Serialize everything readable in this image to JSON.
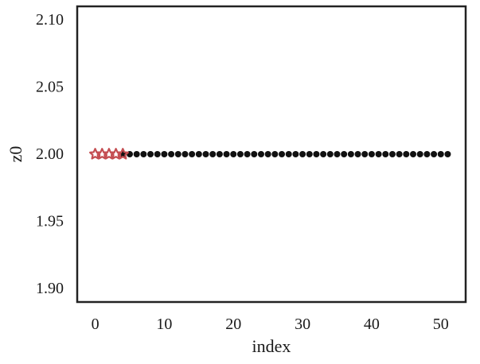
{
  "chart_data": {
    "type": "scatter",
    "xlabel": "index",
    "ylabel": "z0",
    "xlim": [
      -2.6,
      53.6
    ],
    "ylim": [
      1.89,
      2.11
    ],
    "x_ticks": [
      0,
      10,
      20,
      30,
      40,
      50
    ],
    "x_tick_labels": [
      "0",
      "10",
      "20",
      "30",
      "40",
      "50"
    ],
    "y_ticks": [
      1.9,
      1.95,
      2.0,
      2.05,
      2.1
    ],
    "y_tick_labels": [
      "1.90",
      "1.95",
      "2.00",
      "2.05",
      "2.10"
    ],
    "grid": false,
    "series": [
      {
        "marker": "circle",
        "color": "#111111",
        "x": [
          4,
          5,
          6,
          7,
          8,
          9,
          10,
          11,
          12,
          13,
          14,
          15,
          16,
          17,
          18,
          19,
          20,
          21,
          22,
          23,
          24,
          25,
          26,
          27,
          28,
          29,
          30,
          31,
          32,
          33,
          34,
          35,
          36,
          37,
          38,
          39,
          40,
          41,
          42,
          43,
          44,
          45,
          46,
          47,
          48,
          49,
          50,
          51
        ],
        "y": [
          2.0,
          2.0,
          2.0,
          2.0,
          2.0,
          2.0,
          2.0,
          2.0,
          2.0,
          2.0,
          2.0,
          2.0,
          2.0,
          2.0,
          2.0,
          2.0,
          2.0,
          2.0,
          2.0,
          2.0,
          2.0,
          2.0,
          2.0,
          2.0,
          2.0,
          2.0,
          2.0,
          2.0,
          2.0,
          2.0,
          2.0,
          2.0,
          2.0,
          2.0,
          2.0,
          2.0,
          2.0,
          2.0,
          2.0,
          2.0,
          2.0,
          2.0,
          2.0,
          2.0,
          2.0,
          2.0,
          2.0,
          2.0
        ]
      },
      {
        "marker": "star",
        "color": "#c44e52",
        "x": [
          0,
          1,
          2,
          3,
          4
        ],
        "y": [
          2.0,
          2.0,
          2.0,
          2.0,
          2.0
        ]
      }
    ]
  }
}
